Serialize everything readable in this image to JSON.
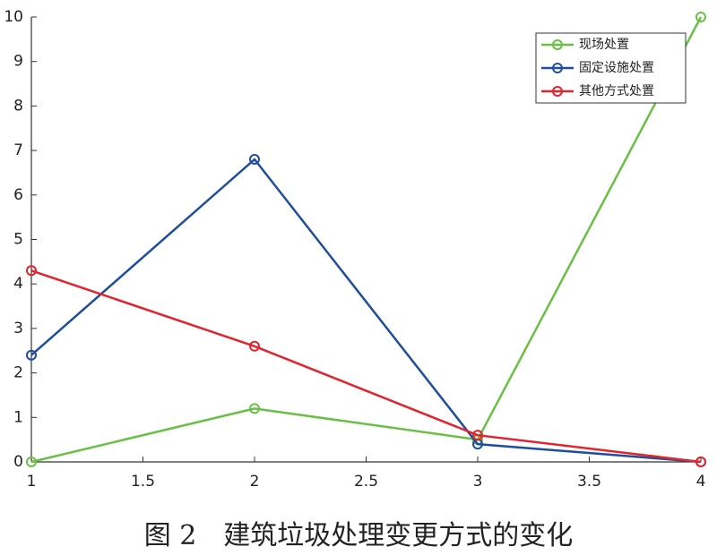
{
  "chart_data": {
    "type": "line",
    "caption": "图 2　建筑垃圾处理变更方式的变化",
    "x": [
      1,
      2,
      3,
      4
    ],
    "series": [
      {
        "name": "现场处置",
        "color": "#6abf45",
        "values": [
          0,
          1.2,
          0.5,
          10
        ]
      },
      {
        "name": "固定设施处置",
        "color": "#1f4e9c",
        "values": [
          2.4,
          6.8,
          0.4,
          0
        ]
      },
      {
        "name": "其他方式处置",
        "color": "#e0252f",
        "values": [
          4.3,
          2.6,
          0.6,
          0
        ]
      }
    ],
    "xlim": [
      1,
      4
    ],
    "xticks": [
      1,
      1.5,
      2,
      2.5,
      3,
      3.5,
      4
    ],
    "ylim": [
      0,
      10
    ],
    "yticks": [
      0,
      1,
      2,
      3,
      4,
      5,
      6,
      7,
      8,
      9,
      10
    ],
    "legend": "upper right",
    "grid": false
  }
}
